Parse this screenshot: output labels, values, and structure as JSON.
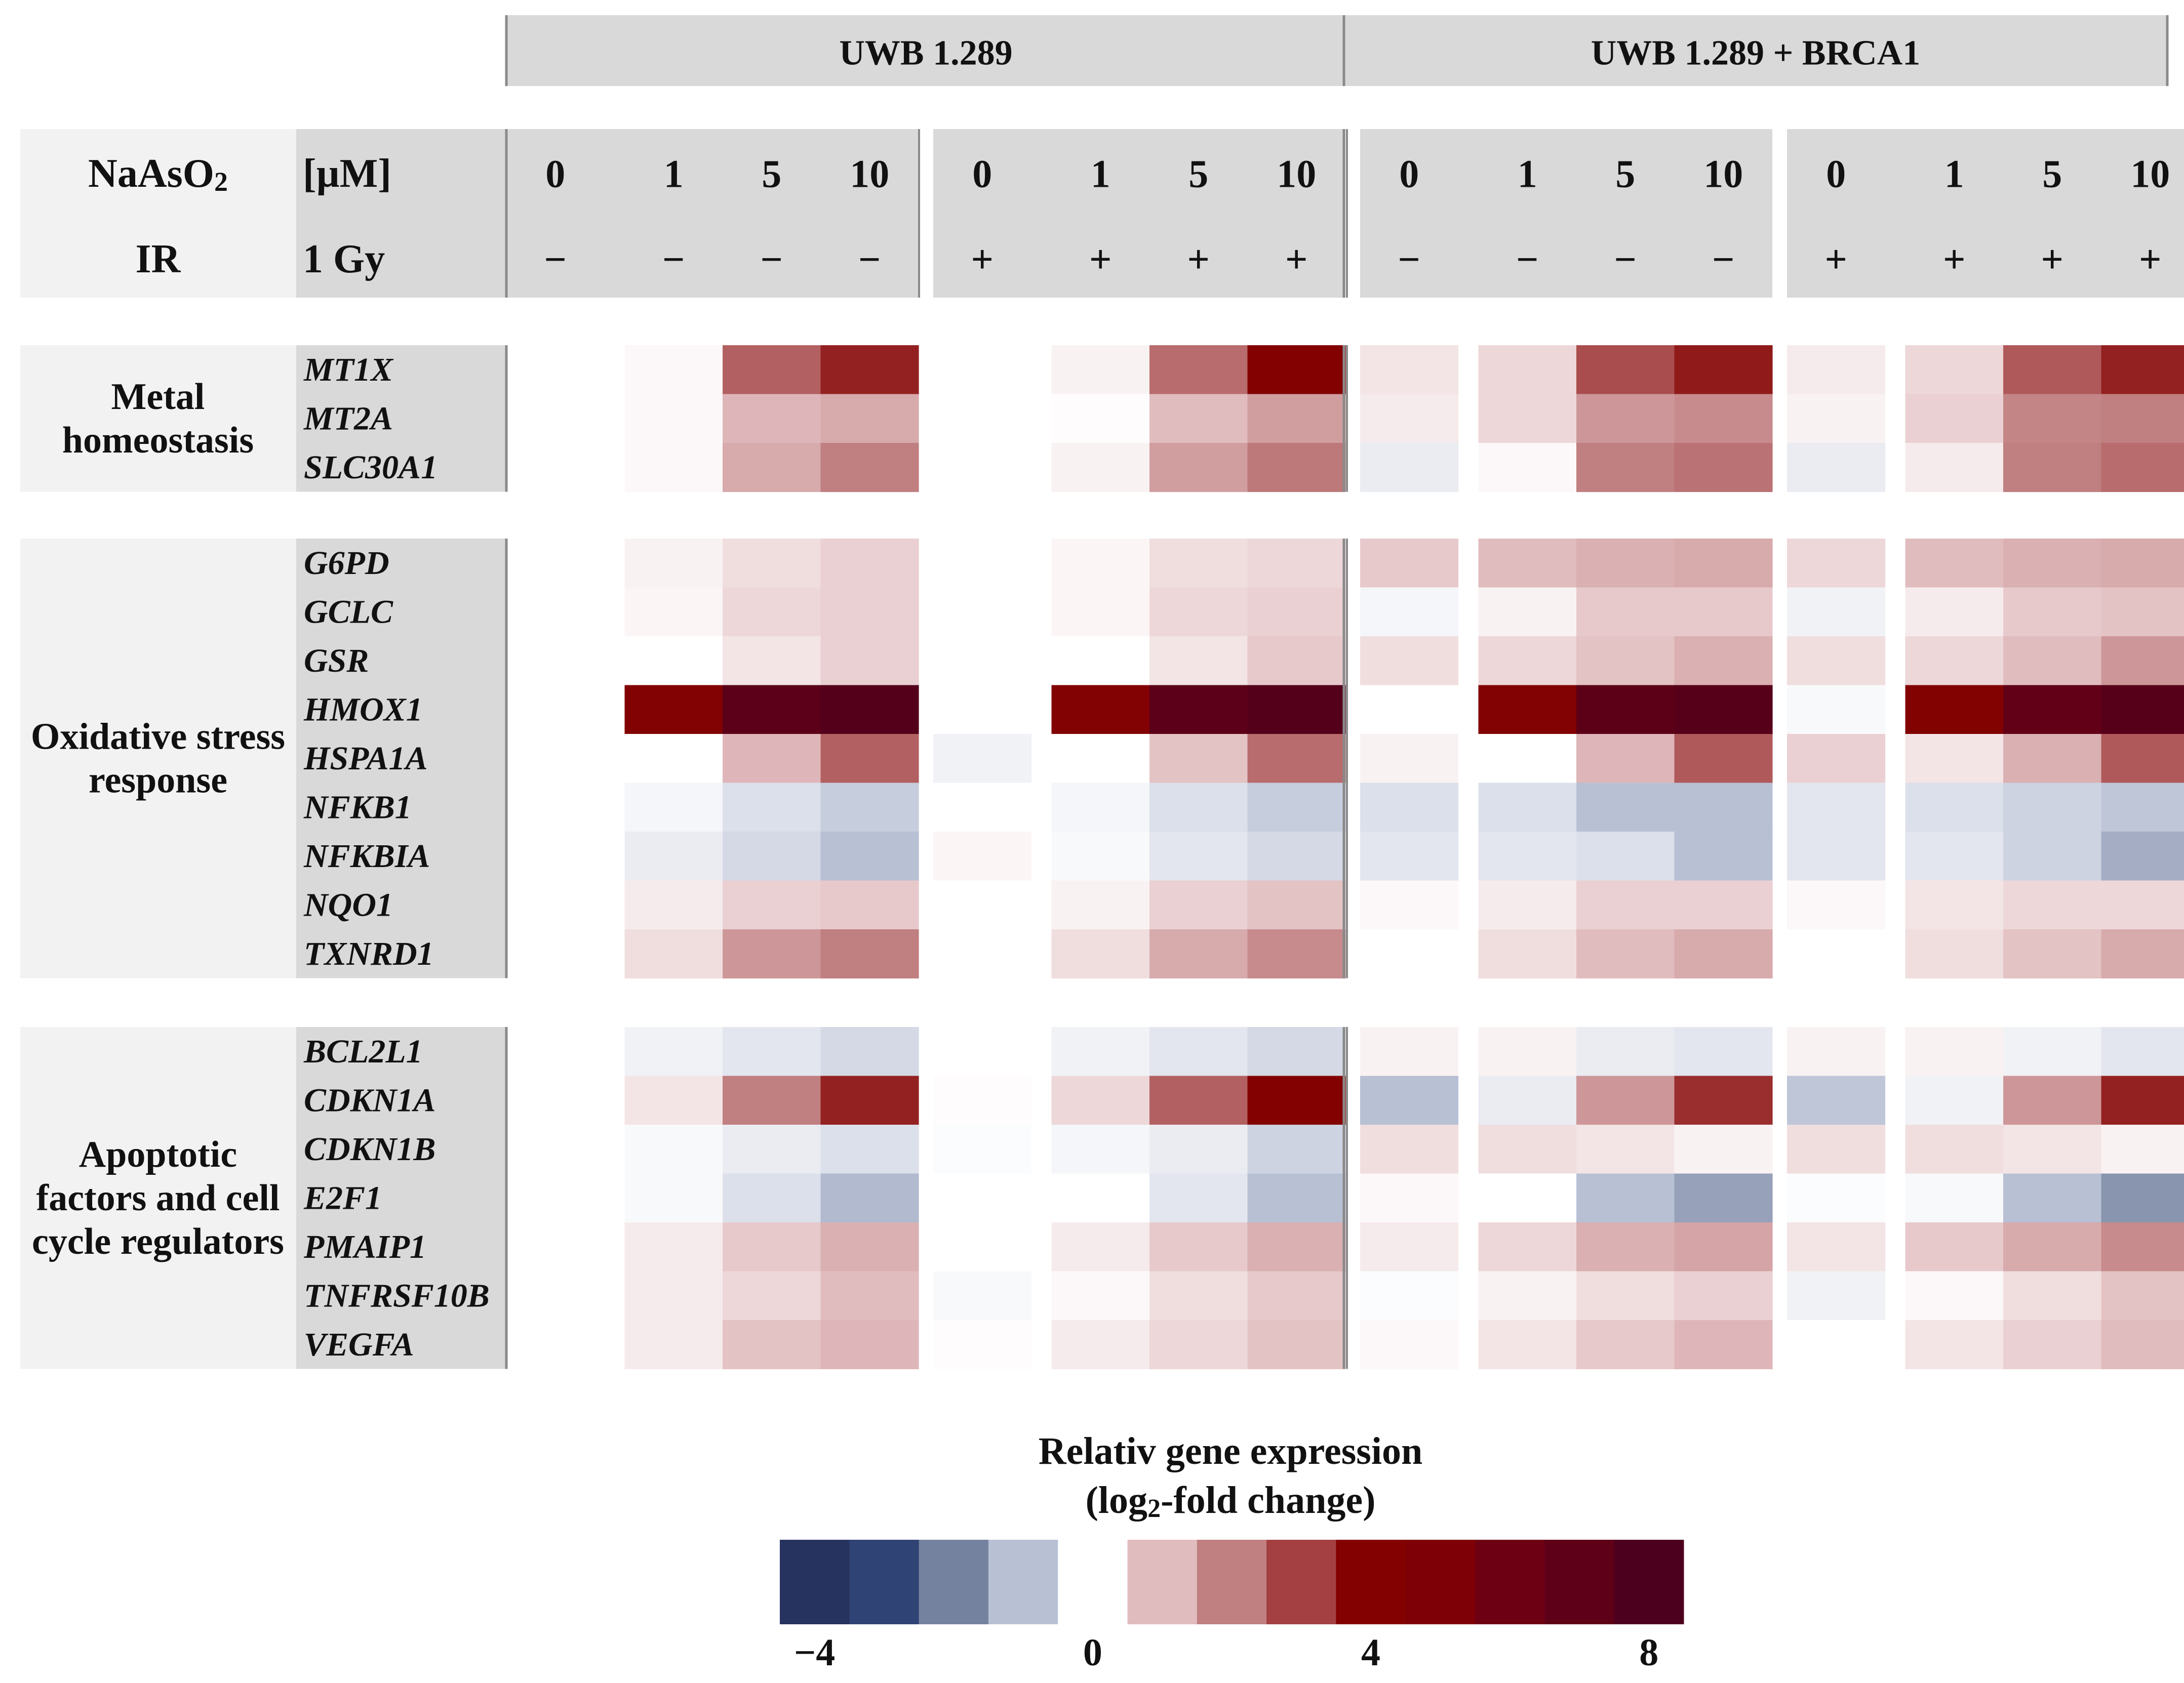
{
  "chart_data": {
    "type": "heatmap",
    "cell_lines": [
      "UWB 1.289",
      "UWB 1.289 + BRCA1"
    ],
    "row_headers": {
      "treatment": "NaAsO",
      "treatment_sub": "2",
      "concentration_unit": "[µM]",
      "irradiation": "IR",
      "dose": "1 Gy"
    },
    "concentrations": [
      "0",
      "1",
      "5",
      "10"
    ],
    "ir_groups": [
      {
        "sign": "−",
        "cell_line": 0
      },
      {
        "sign": "+",
        "cell_line": 0
      },
      {
        "sign": "−",
        "cell_line": 1
      },
      {
        "sign": "+",
        "cell_line": 1
      }
    ],
    "gene_groups": [
      {
        "name_lines": [
          "Metal",
          "homeostasis"
        ],
        "genes": [
          "MT1X",
          "MT2A",
          "SLC30A1"
        ],
        "values": [
          [
            0,
            0.1,
            2.5,
            3.5,
            0,
            0.2,
            2.3,
            4.0,
            0.4,
            0.6,
            2.8,
            3.6,
            0.3,
            0.6,
            2.6,
            3.5
          ],
          [
            0,
            0.1,
            1.1,
            1.3,
            0,
            0.05,
            1.0,
            1.5,
            0.3,
            0.6,
            1.6,
            1.8,
            0.2,
            0.7,
            1.9,
            2.0
          ],
          [
            0,
            0.1,
            1.3,
            2.0,
            0,
            0.2,
            1.5,
            2.1,
            -0.3,
            0.1,
            2.0,
            2.2,
            -0.3,
            0.3,
            2.0,
            2.3
          ]
        ]
      },
      {
        "name_lines": [
          "Oxidative stress",
          "response"
        ],
        "genes": [
          "G6PD",
          "GCLC",
          "GSR",
          "HMOX1",
          "HSPA1A",
          "NFKB1",
          "NFKBIA",
          "NQO1",
          "TXNRD1"
        ],
        "values": [
          [
            0,
            0.2,
            0.5,
            0.7,
            0,
            0.15,
            0.5,
            0.6,
            0.8,
            1.0,
            1.2,
            1.3,
            0.6,
            1.0,
            1.2,
            1.3
          ],
          [
            0,
            0.15,
            0.6,
            0.7,
            0,
            0.15,
            0.6,
            0.7,
            -0.15,
            0.2,
            0.8,
            0.8,
            -0.2,
            0.3,
            0.8,
            0.9
          ],
          [
            0,
            0,
            0.4,
            0.7,
            0,
            0,
            0.4,
            0.8,
            0.5,
            0.6,
            0.9,
            1.2,
            0.5,
            0.6,
            1.0,
            1.6
          ],
          [
            0,
            4.3,
            7.2,
            7.6,
            0,
            4.3,
            7.2,
            7.6,
            0,
            4.3,
            7.1,
            7.5,
            -0.1,
            4.2,
            6.8,
            7.4
          ],
          [
            0,
            0,
            1.1,
            2.5,
            -0.2,
            0,
            0.9,
            2.3,
            0.2,
            0,
            1.1,
            2.6,
            0.7,
            0.4,
            1.2,
            2.6
          ],
          [
            0,
            -0.15,
            -0.5,
            -0.8,
            0,
            -0.15,
            -0.5,
            -0.8,
            -0.5,
            -0.5,
            -1.0,
            -1.0,
            -0.4,
            -0.5,
            -0.7,
            -0.9
          ],
          [
            0,
            -0.3,
            -0.6,
            -1.0,
            0.15,
            -0.1,
            -0.4,
            -0.6,
            -0.4,
            -0.4,
            -0.5,
            -1.0,
            -0.4,
            -0.4,
            -0.7,
            -1.3
          ],
          [
            0,
            0.3,
            0.7,
            0.8,
            0,
            0.2,
            0.7,
            0.9,
            0.1,
            0.3,
            0.7,
            0.7,
            0.1,
            0.4,
            0.6,
            0.6
          ],
          [
            0,
            0.5,
            1.6,
            2.0,
            0,
            0.5,
            1.3,
            1.8,
            0,
            0.5,
            1.0,
            1.3,
            0,
            0.5,
            0.9,
            1.3
          ]
        ]
      },
      {
        "name_lines": [
          "Apoptotic",
          "factors and cell",
          "cycle regulators"
        ],
        "genes": [
          "BCL2L1",
          "CDKN1A",
          "CDKN1B",
          "E2F1",
          "PMAIP1",
          "TNFRSF10B",
          "VEGFA"
        ],
        "values": [
          [
            0,
            -0.2,
            -0.4,
            -0.6,
            0,
            -0.2,
            -0.4,
            -0.6,
            0.2,
            0.2,
            -0.3,
            -0.4,
            0.2,
            0.2,
            -0.2,
            -0.4
          ],
          [
            0,
            0.4,
            2.0,
            3.5,
            0.05,
            0.6,
            2.5,
            4.1,
            -1.0,
            -0.3,
            1.6,
            3.3,
            -0.9,
            -0.2,
            1.6,
            3.5
          ],
          [
            0,
            -0.1,
            -0.3,
            -0.5,
            -0.05,
            -0.15,
            -0.3,
            -0.7,
            0.5,
            0.5,
            0.4,
            0.2,
            0.5,
            0.5,
            0.4,
            0.2
          ],
          [
            0,
            -0.1,
            -0.5,
            -1.1,
            0,
            0,
            -0.4,
            -1.0,
            0.1,
            0,
            -1.0,
            -1.5,
            -0.05,
            -0.1,
            -1.0,
            -1.7
          ],
          [
            0,
            0.3,
            0.8,
            1.2,
            0,
            0.3,
            0.8,
            1.2,
            0.3,
            0.6,
            1.2,
            1.4,
            0.4,
            0.8,
            1.3,
            1.8
          ],
          [
            0,
            0.3,
            0.6,
            1.0,
            -0.1,
            0.1,
            0.5,
            0.8,
            -0.05,
            0.2,
            0.5,
            0.7,
            -0.2,
            0.1,
            0.5,
            0.9
          ],
          [
            0,
            0.3,
            0.9,
            1.1,
            0.05,
            0.3,
            0.6,
            0.9,
            0.1,
            0.4,
            0.8,
            1.1,
            0,
            0.4,
            0.7,
            1.0
          ]
        ]
      }
    ],
    "colorbar": {
      "title": "Relativ gene expression",
      "subtitle_pre": "(log",
      "subtitle_sub": "2",
      "subtitle_post": "-fold change)",
      "ticks": [
        "−4",
        "0",
        "4",
        "8"
      ],
      "range": [
        -4,
        8
      ],
      "colors": [
        "#26335e",
        "#2f4375",
        "#75829f",
        "#b8c0d4",
        "#ffffff",
        "#e1bcbf",
        "#c07f80",
        "#a44042",
        "#830100",
        "#7e0006",
        "#6d0012",
        "#5e0017",
        "#4d001d"
      ]
    },
    "scale_stops": [
      [
        -4,
        "#26335e"
      ],
      [
        -3,
        "#2f4375"
      ],
      [
        -2,
        "#75829f"
      ],
      [
        -1,
        "#b8c0d4"
      ],
      [
        0,
        "#ffffff"
      ],
      [
        1,
        "#e1bcbf"
      ],
      [
        2,
        "#c07f80"
      ],
      [
        3,
        "#a44042"
      ],
      [
        4,
        "#830100"
      ],
      [
        5,
        "#7e0006"
      ],
      [
        6,
        "#6d0012"
      ],
      [
        7,
        "#5e0017"
      ],
      [
        8,
        "#4d001d"
      ]
    ]
  }
}
